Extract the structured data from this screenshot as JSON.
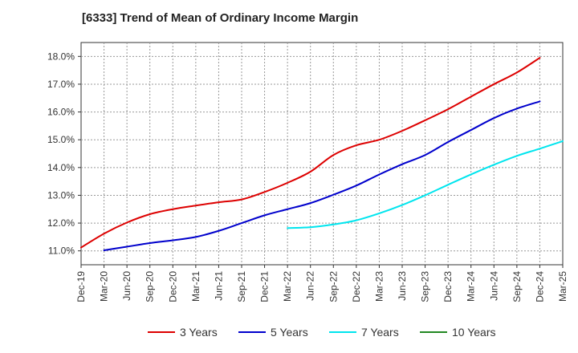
{
  "title": "[6333]  Trend of Mean of Ordinary Income Margin",
  "chart_data": {
    "type": "line",
    "title": "[6333]  Trend of Mean of Ordinary Income Margin",
    "xlabel": "",
    "ylabel": "",
    "x_tick_labels": [
      "Dec-19",
      "Mar-20",
      "Jun-20",
      "Sep-20",
      "Dec-20",
      "Mar-21",
      "Jun-21",
      "Sep-21",
      "Dec-21",
      "Mar-22",
      "Jun-22",
      "Sep-22",
      "Dec-22",
      "Mar-23",
      "Jun-23",
      "Sep-23",
      "Dec-23",
      "Mar-24",
      "Jun-24",
      "Sep-24",
      "Dec-24",
      "Mar-25"
    ],
    "y_tick_labels": [
      "11.0%",
      "12.0%",
      "13.0%",
      "14.0%",
      "15.0%",
      "16.0%",
      "17.0%",
      "18.0%"
    ],
    "ylim": [
      10.5,
      18.5
    ],
    "grid": true,
    "legend_position": "bottom",
    "series": [
      {
        "name": "3 Years",
        "color": "#dd0000",
        "start_index": 0,
        "values": [
          11.12,
          11.62,
          12.02,
          12.32,
          12.5,
          12.63,
          12.75,
          12.85,
          13.12,
          13.45,
          13.85,
          14.45,
          14.8,
          15.0,
          15.32,
          15.7,
          16.1,
          16.55,
          17.0,
          17.42,
          17.95
        ]
      },
      {
        "name": "5 Years",
        "color": "#0000cc",
        "start_index": 1,
        "values": [
          11.02,
          11.15,
          11.28,
          11.38,
          11.5,
          11.72,
          12.0,
          12.28,
          12.5,
          12.72,
          13.02,
          13.35,
          13.75,
          14.12,
          14.45,
          14.92,
          15.35,
          15.78,
          16.12,
          16.38
        ]
      },
      {
        "name": "7 Years",
        "color": "#00e5ee",
        "start_index": 9,
        "values": [
          11.82,
          11.85,
          11.95,
          12.1,
          12.35,
          12.65,
          13.0,
          13.38,
          13.75,
          14.1,
          14.42,
          14.68,
          14.95
        ]
      },
      {
        "name": "10 Years",
        "color": "#228822",
        "start_index": 0,
        "values": []
      }
    ]
  }
}
